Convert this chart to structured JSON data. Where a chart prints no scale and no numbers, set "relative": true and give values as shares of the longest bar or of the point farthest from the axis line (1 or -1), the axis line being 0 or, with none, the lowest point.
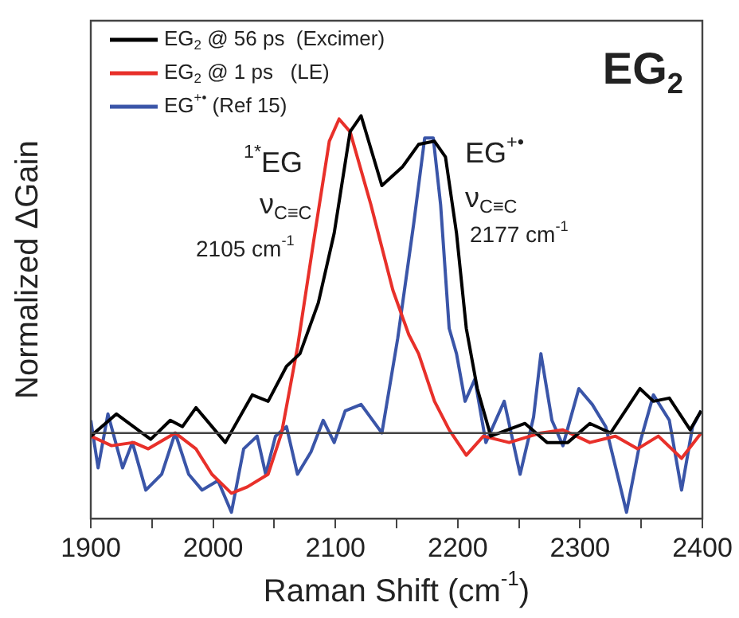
{
  "chart_data": {
    "type": "line",
    "relative": true,
    "xlabel": "Raman Shift (cm$^{-1}$)",
    "ylabel": "Normalized ΔGain",
    "legend": "top left",
    "grid": false,
    "marker": "none",
    "line_style": "solid",
    "xlim": [
      1900,
      2400
    ],
    "xticks": [
      1900,
      {
        "value": 1950,
        "label": null
      },
      2000,
      {
        "value": 2050,
        "label": null
      },
      2100,
      {
        "value": 2150,
        "label": null
      },
      2200,
      {
        "value": 2250,
        "label": null
      },
      2300,
      {
        "value": 2350,
        "label": null
      },
      2400
    ],
    "annotations": [
      "EG$_{2}$",
      "$^{1*}$EG",
      "ν$_{C≡C}$",
      "2105 cm$^{-1}$",
      "EG$^{+•}$",
      "ν$_{C≡C}$",
      "2177 cm$^{-1}$"
    ],
    "series": [
      {
        "name": "EG$_{2}$ @ 56 ps  (Excimer)",
        "color": "#000000",
        "x": [
          1900,
          1921,
          1949,
          1965,
          1975,
          1986,
          2010,
          2032,
          2045,
          2060,
          2071,
          2086,
          2099,
          2112,
          2121,
          2138,
          2155,
          2168,
          2181,
          2190,
          2199,
          2207,
          2216,
          2227,
          2255,
          2273,
          2290,
          2308,
          2325,
          2349,
          2360,
          2373,
          2390,
          2399
        ],
        "values": [
          -0.01,
          0.06,
          -0.02,
          0.04,
          0.02,
          0.08,
          -0.03,
          0.12,
          0.1,
          0.21,
          0.25,
          0.41,
          0.63,
          0.95,
          1,
          0.78,
          0.84,
          0.91,
          0.92,
          0.87,
          0.63,
          0.33,
          0.14,
          -0.01,
          0.03,
          -0.03,
          -0.03,
          0.03,
          0,
          0.14,
          0.1,
          0.11,
          0.01,
          0.07
        ]
      },
      {
        "name": "EG$_{2}$ @ 1 ps   (LE)",
        "color": "#e8302a",
        "x": [
          1900,
          1917,
          1935,
          1947,
          1969,
          1986,
          1999,
          2015,
          2028,
          2045,
          2056,
          2069,
          2082,
          2095,
          2103,
          2112,
          2129,
          2147,
          2160,
          2168,
          2181,
          2193,
          2207,
          2221,
          2242,
          2268,
          2286,
          2308,
          2329,
          2347,
          2364,
          2383,
          2399
        ],
        "values": [
          -0.01,
          -0.04,
          -0.03,
          -0.05,
          0,
          -0.05,
          -0.13,
          -0.19,
          -0.17,
          -0.13,
          0,
          0.27,
          0.6,
          0.92,
          0.99,
          0.95,
          0.72,
          0.45,
          0.31,
          0.25,
          0.1,
          0.01,
          -0.07,
          -0.01,
          -0.03,
          0,
          0.01,
          -0.03,
          -0.01,
          -0.05,
          -0.01,
          -0.08,
          0
        ]
      },
      {
        "name": "EG$^{+•}$ (Ref 15)",
        "color": "#3a55a8",
        "x": [
          1900,
          1906,
          1914,
          1926,
          1934,
          1945,
          1958,
          1969,
          1980,
          1991,
          2004,
          2015,
          2025,
          2036,
          2043,
          2051,
          2060,
          2069,
          2080,
          2090,
          2099,
          2108,
          2121,
          2138,
          2151,
          2164,
          2173,
          2180,
          2186,
          2193,
          2199,
          2206,
          2214,
          2223,
          2238,
          2251,
          2262,
          2268,
          2277,
          2286,
          2299,
          2310,
          2321,
          2338,
          2349,
          2360,
          2373,
          2383,
          2392,
          2399
        ],
        "values": [
          0.04,
          -0.11,
          0.06,
          -0.11,
          -0.03,
          -0.18,
          -0.13,
          0,
          -0.13,
          -0.18,
          -0.15,
          -0.25,
          -0.05,
          -0.01,
          -0.13,
          -0.01,
          0.02,
          -0.13,
          -0.06,
          0.04,
          -0.03,
          0.07,
          0.09,
          0,
          0.3,
          0.66,
          0.93,
          0.93,
          0.72,
          0.33,
          0.25,
          0.1,
          0.17,
          -0.03,
          0.1,
          -0.13,
          0.05,
          0.25,
          0.04,
          -0.04,
          0.14,
          0.09,
          0.02,
          -0.25,
          -0.03,
          0.12,
          0.04,
          -0.18,
          0.02,
          0.07
        ]
      }
    ]
  }
}
